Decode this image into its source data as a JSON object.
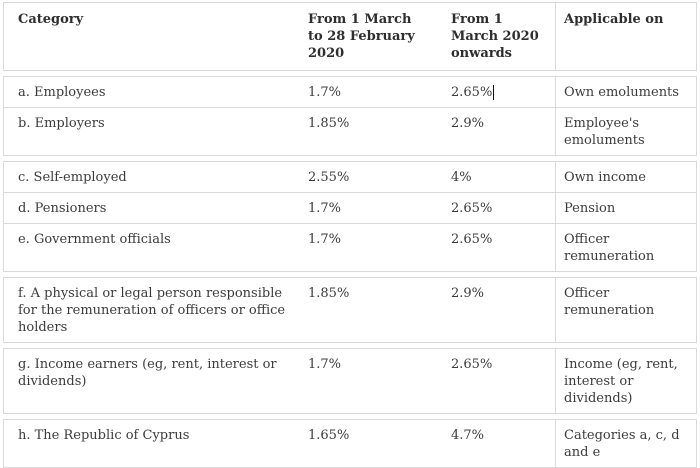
{
  "colors": {
    "border": "#d9d9d9",
    "text": "#3b3b3b",
    "header_text": "#2e2e2e",
    "background": "#ffffff",
    "caret": "#111111"
  },
  "table": {
    "headers": {
      "category": "Category",
      "period1": "From 1 March to 28 February 2020",
      "period2": "From 1 March 2020 onwards",
      "applicable": "Applicable on"
    },
    "rows": [
      {
        "category": "a. Employees",
        "period1": "1.7%",
        "period2": "2.65%",
        "applicable": "Own emoluments"
      },
      {
        "category": "b. Employers",
        "period1": "1.85%",
        "period2": "2.9%",
        "applicable": "Employee's emoluments"
      },
      {
        "category": "c. Self-employed",
        "period1": "2.55%",
        "period2": "4%",
        "applicable": "Own income"
      },
      {
        "category": "d. Pensioners",
        "period1": "1.7%",
        "period2": "2.65%",
        "applicable": "Pension"
      },
      {
        "category": "e. Government officials",
        "period1": "1.7%",
        "period2": "2.65%",
        "applicable": "Officer remuneration"
      },
      {
        "category": "f. A physical or legal person responsible for the remuneration of officers or office holders",
        "period1": "1.85%",
        "period2": "2.9%",
        "applicable": "Officer remuneration"
      },
      {
        "category": "g. Income earners (eg, rent, interest or dividends)",
        "period1": "1.7%",
        "period2": "2.65%",
        "applicable": "Income (eg, rent, interest or dividends)"
      },
      {
        "category": "h. The Republic of Cyprus",
        "period1": "1.65%",
        "period2": "4.7%",
        "applicable": "Categories a, c, d and e"
      }
    ]
  }
}
